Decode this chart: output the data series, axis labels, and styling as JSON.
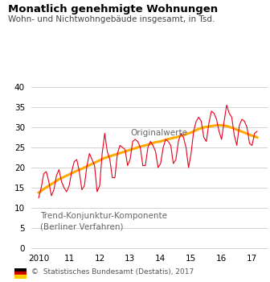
{
  "title": "Monatlich genehmigte Wohnungen",
  "subtitle": "Wohn- und Nichtwohngebäude insgesamt, in Tsd.",
  "footer": "©  Statistisches Bundesamt (Destatis), 2017",
  "ylim": [
    0,
    42
  ],
  "yticks": [
    0,
    5,
    10,
    15,
    20,
    25,
    30,
    35,
    40
  ],
  "xtick_labels": [
    "2010",
    "11",
    "12",
    "13",
    "14",
    "15",
    "16",
    "17"
  ],
  "xtick_positions": [
    2010,
    2011,
    2012,
    2013,
    2014,
    2015,
    2016,
    2017
  ],
  "label_originalwerte": "Originalwerte",
  "label_trend": "Trend-Konjunktur-Komponente\n(Berliner Verfahren)",
  "color_original": "#e8001c",
  "color_trend": "#ffaa00",
  "background_color": "#ffffff",
  "grid_color": "#cccccc",
  "original_values": [
    12.5,
    15.0,
    18.5,
    19.0,
    16.5,
    13.0,
    14.5,
    18.0,
    19.5,
    16.5,
    15.0,
    14.0,
    15.5,
    19.0,
    21.5,
    22.0,
    19.0,
    14.5,
    15.5,
    20.5,
    23.5,
    22.0,
    20.5,
    14.0,
    15.5,
    23.5,
    28.5,
    24.0,
    22.0,
    17.5,
    17.5,
    23.5,
    25.5,
    25.0,
    24.5,
    20.5,
    22.0,
    26.5,
    27.0,
    26.5,
    25.0,
    20.5,
    20.5,
    25.0,
    26.5,
    25.5,
    24.0,
    20.0,
    21.0,
    25.0,
    27.0,
    26.5,
    25.5,
    21.0,
    22.0,
    26.5,
    28.5,
    27.5,
    25.0,
    20.0,
    23.5,
    29.0,
    31.5,
    32.5,
    31.5,
    27.5,
    26.5,
    31.0,
    34.0,
    33.5,
    32.0,
    29.0,
    27.0,
    31.5,
    35.5,
    33.5,
    32.5,
    28.0,
    25.5,
    30.5,
    32.0,
    31.5,
    30.0,
    26.0,
    25.5,
    28.5,
    29.0
  ],
  "trend_values": [
    13.8,
    14.2,
    14.7,
    15.1,
    15.5,
    15.9,
    16.3,
    16.7,
    17.1,
    17.4,
    17.7,
    18.0,
    18.3,
    18.6,
    18.9,
    19.2,
    19.5,
    19.7,
    20.0,
    20.3,
    20.6,
    20.9,
    21.2,
    21.5,
    21.8,
    22.1,
    22.4,
    22.6,
    22.8,
    23.0,
    23.2,
    23.4,
    23.6,
    23.8,
    24.0,
    24.2,
    24.4,
    24.6,
    24.8,
    25.0,
    25.2,
    25.4,
    25.5,
    25.7,
    25.9,
    26.1,
    26.3,
    26.4,
    26.5,
    26.7,
    26.9,
    27.1,
    27.2,
    27.4,
    27.5,
    27.7,
    27.9,
    28.1,
    28.3,
    28.5,
    28.7,
    29.0,
    29.3,
    29.6,
    29.8,
    30.0,
    30.1,
    30.2,
    30.3,
    30.4,
    30.5,
    30.5,
    30.5,
    30.4,
    30.3,
    30.1,
    29.9,
    29.7,
    29.4,
    29.2,
    28.9,
    28.7,
    28.4,
    28.2,
    27.9,
    27.7,
    27.5
  ]
}
